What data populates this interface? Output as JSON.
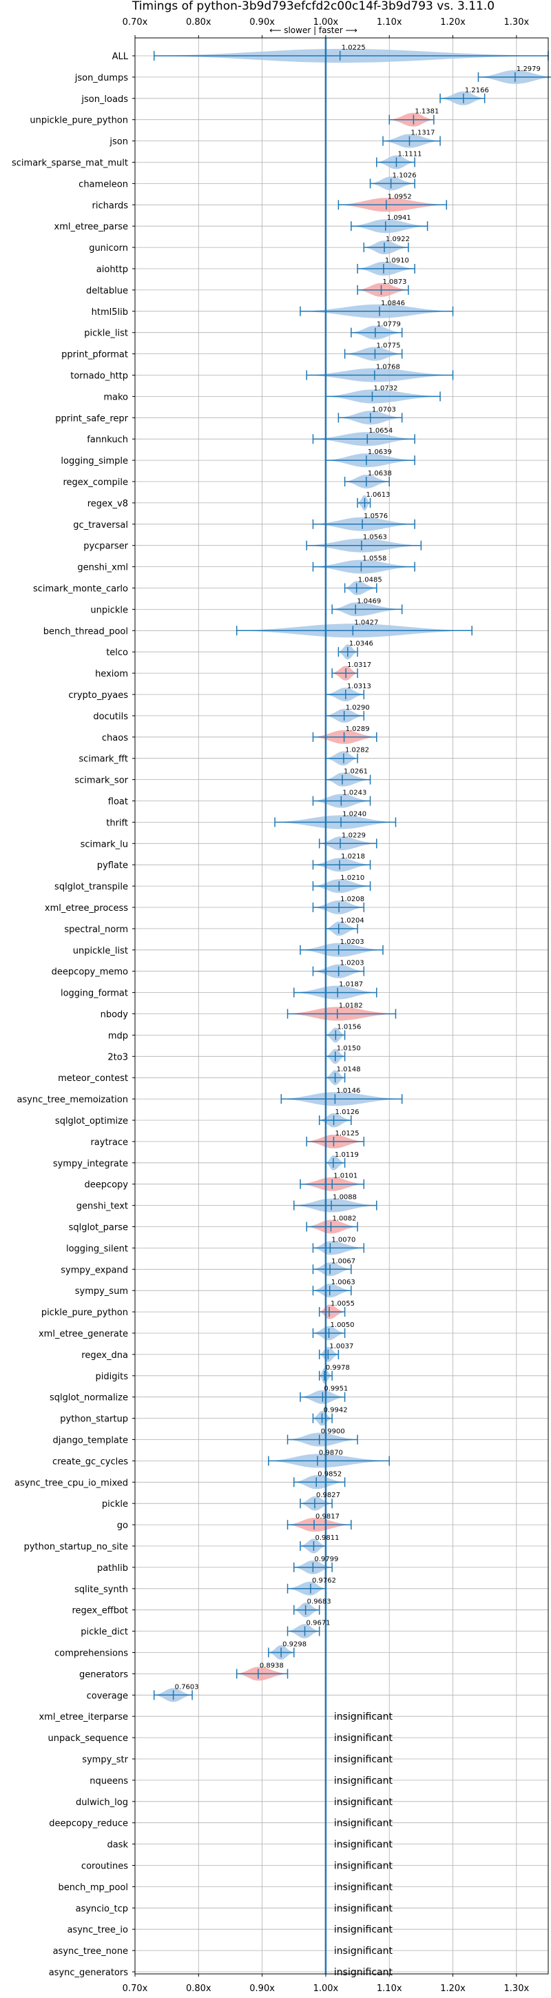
{
  "chart_data": {
    "type": "violin",
    "title": "Timings of python-3b9d793efcfd2c00c14f-3b9d793 vs. 3.11.0",
    "direction_label": "⟵ slower  |  faster ⟶",
    "xlim": [
      0.7,
      1.35
    ],
    "x_ticks": [
      0.7,
      0.8,
      0.9,
      1.0,
      1.1,
      1.2,
      1.3
    ],
    "x_tick_labels": [
      "0.70x",
      "0.80x",
      "0.90x",
      "1.00x",
      "1.10x",
      "1.20x",
      "1.30x"
    ],
    "reference_line": 1.0,
    "grid": true,
    "colors": {
      "violin_default": "#a8c8e8",
      "violin_highlight": "#f4a7a7",
      "range_line": "#1f77b4",
      "reference_line": "#1f77b4",
      "grid": "#b0b0b0"
    },
    "insignificant_text": "insignificant",
    "benchmarks": [
      {
        "name": "ALL",
        "value": 1.0225,
        "label": "1.0225",
        "min": 0.73,
        "max": 1.35,
        "highlight": false
      },
      {
        "name": "json_dumps",
        "value": 1.2979,
        "label": "1.2979",
        "min": 1.24,
        "max": 1.36,
        "highlight": false
      },
      {
        "name": "json_loads",
        "value": 1.2166,
        "label": "1.2166",
        "min": 1.18,
        "max": 1.25,
        "highlight": false
      },
      {
        "name": "unpickle_pure_python",
        "value": 1.1381,
        "label": "1.1381",
        "min": 1.1,
        "max": 1.17,
        "highlight": true
      },
      {
        "name": "json",
        "value": 1.1317,
        "label": "1.1317",
        "min": 1.09,
        "max": 1.18,
        "highlight": false
      },
      {
        "name": "scimark_sparse_mat_mult",
        "value": 1.1111,
        "label": "1.1111",
        "min": 1.08,
        "max": 1.14,
        "highlight": false
      },
      {
        "name": "chameleon",
        "value": 1.1026,
        "label": "1.1026",
        "min": 1.07,
        "max": 1.14,
        "highlight": false
      },
      {
        "name": "richards",
        "value": 1.0952,
        "label": "1.0952",
        "min": 1.02,
        "max": 1.19,
        "highlight": true
      },
      {
        "name": "xml_etree_parse",
        "value": 1.0941,
        "label": "1.0941",
        "min": 1.04,
        "max": 1.16,
        "highlight": false
      },
      {
        "name": "gunicorn",
        "value": 1.0922,
        "label": "1.0922",
        "min": 1.06,
        "max": 1.13,
        "highlight": false
      },
      {
        "name": "aiohttp",
        "value": 1.091,
        "label": "1.0910",
        "min": 1.05,
        "max": 1.14,
        "highlight": false
      },
      {
        "name": "deltablue",
        "value": 1.0873,
        "label": "1.0873",
        "min": 1.05,
        "max": 1.13,
        "highlight": true
      },
      {
        "name": "html5lib",
        "value": 1.0846,
        "label": "1.0846",
        "min": 0.96,
        "max": 1.2,
        "highlight": false
      },
      {
        "name": "pickle_list",
        "value": 1.0779,
        "label": "1.0779",
        "min": 1.04,
        "max": 1.12,
        "highlight": false
      },
      {
        "name": "pprint_pformat",
        "value": 1.0775,
        "label": "1.0775",
        "min": 1.03,
        "max": 1.12,
        "highlight": false
      },
      {
        "name": "tornado_http",
        "value": 1.0768,
        "label": "1.0768",
        "min": 0.97,
        "max": 1.2,
        "highlight": false
      },
      {
        "name": "mako",
        "value": 1.0732,
        "label": "1.0732",
        "min": 1.0,
        "max": 1.18,
        "highlight": false
      },
      {
        "name": "pprint_safe_repr",
        "value": 1.0703,
        "label": "1.0703",
        "min": 1.02,
        "max": 1.12,
        "highlight": false
      },
      {
        "name": "fannkuch",
        "value": 1.0654,
        "label": "1.0654",
        "min": 0.98,
        "max": 1.14,
        "highlight": false
      },
      {
        "name": "logging_simple",
        "value": 1.0639,
        "label": "1.0639",
        "min": 1.0,
        "max": 1.14,
        "highlight": false
      },
      {
        "name": "regex_compile",
        "value": 1.0638,
        "label": "1.0638",
        "min": 1.03,
        "max": 1.1,
        "highlight": false
      },
      {
        "name": "regex_v8",
        "value": 1.0613,
        "label": "1.0613",
        "min": 1.05,
        "max": 1.07,
        "highlight": false
      },
      {
        "name": "gc_traversal",
        "value": 1.0576,
        "label": "1.0576",
        "min": 0.98,
        "max": 1.14,
        "highlight": false
      },
      {
        "name": "pycparser",
        "value": 1.0563,
        "label": "1.0563",
        "min": 0.97,
        "max": 1.15,
        "highlight": false
      },
      {
        "name": "genshi_xml",
        "value": 1.0558,
        "label": "1.0558",
        "min": 0.98,
        "max": 1.14,
        "highlight": false
      },
      {
        "name": "scimark_monte_carlo",
        "value": 1.0485,
        "label": "1.0485",
        "min": 1.03,
        "max": 1.08,
        "highlight": false
      },
      {
        "name": "unpickle",
        "value": 1.0469,
        "label": "1.0469",
        "min": 1.01,
        "max": 1.12,
        "highlight": false
      },
      {
        "name": "bench_thread_pool",
        "value": 1.0427,
        "label": "1.0427",
        "min": 0.86,
        "max": 1.23,
        "highlight": false
      },
      {
        "name": "telco",
        "value": 1.0346,
        "label": "1.0346",
        "min": 1.02,
        "max": 1.05,
        "highlight": false
      },
      {
        "name": "hexiom",
        "value": 1.0317,
        "label": "1.0317",
        "min": 1.01,
        "max": 1.05,
        "highlight": true
      },
      {
        "name": "crypto_pyaes",
        "value": 1.0313,
        "label": "1.0313",
        "min": 1.0,
        "max": 1.06,
        "highlight": false
      },
      {
        "name": "docutils",
        "value": 1.029,
        "label": "1.0290",
        "min": 1.0,
        "max": 1.06,
        "highlight": false
      },
      {
        "name": "chaos",
        "value": 1.0289,
        "label": "1.0289",
        "min": 0.98,
        "max": 1.08,
        "highlight": true
      },
      {
        "name": "scimark_fft",
        "value": 1.0282,
        "label": "1.0282",
        "min": 1.0,
        "max": 1.05,
        "highlight": false
      },
      {
        "name": "scimark_sor",
        "value": 1.0261,
        "label": "1.0261",
        "min": 1.0,
        "max": 1.07,
        "highlight": false
      },
      {
        "name": "float",
        "value": 1.0243,
        "label": "1.0243",
        "min": 0.98,
        "max": 1.07,
        "highlight": false
      },
      {
        "name": "thrift",
        "value": 1.024,
        "label": "1.0240",
        "min": 0.92,
        "max": 1.11,
        "highlight": false
      },
      {
        "name": "scimark_lu",
        "value": 1.0229,
        "label": "1.0229",
        "min": 0.99,
        "max": 1.08,
        "highlight": false
      },
      {
        "name": "pyflate",
        "value": 1.0218,
        "label": "1.0218",
        "min": 0.98,
        "max": 1.07,
        "highlight": false
      },
      {
        "name": "sqlglot_transpile",
        "value": 1.021,
        "label": "1.0210",
        "min": 0.98,
        "max": 1.07,
        "highlight": false
      },
      {
        "name": "xml_etree_process",
        "value": 1.0208,
        "label": "1.0208",
        "min": 0.98,
        "max": 1.06,
        "highlight": false
      },
      {
        "name": "spectral_norm",
        "value": 1.0204,
        "label": "1.0204",
        "min": 1.0,
        "max": 1.05,
        "highlight": false
      },
      {
        "name": "unpickle_list",
        "value": 1.0203,
        "label": "1.0203",
        "min": 0.96,
        "max": 1.09,
        "highlight": false
      },
      {
        "name": "deepcopy_memo",
        "value": 1.0203,
        "label": "1.0203",
        "min": 0.98,
        "max": 1.06,
        "highlight": false
      },
      {
        "name": "logging_format",
        "value": 1.0187,
        "label": "1.0187",
        "min": 0.95,
        "max": 1.08,
        "highlight": false
      },
      {
        "name": "nbody",
        "value": 1.0182,
        "label": "1.0182",
        "min": 0.94,
        "max": 1.11,
        "highlight": true
      },
      {
        "name": "mdp",
        "value": 1.0156,
        "label": "1.0156",
        "min": 1.0,
        "max": 1.03,
        "highlight": false
      },
      {
        "name": "2to3",
        "value": 1.015,
        "label": "1.0150",
        "min": 1.0,
        "max": 1.03,
        "highlight": false
      },
      {
        "name": "meteor_contest",
        "value": 1.0148,
        "label": "1.0148",
        "min": 1.0,
        "max": 1.03,
        "highlight": false
      },
      {
        "name": "async_tree_memoization",
        "value": 1.0146,
        "label": "1.0146",
        "min": 0.93,
        "max": 1.12,
        "highlight": false
      },
      {
        "name": "sqlglot_optimize",
        "value": 1.0126,
        "label": "1.0126",
        "min": 0.99,
        "max": 1.04,
        "highlight": false
      },
      {
        "name": "raytrace",
        "value": 1.0125,
        "label": "1.0125",
        "min": 0.97,
        "max": 1.06,
        "highlight": true
      },
      {
        "name": "sympy_integrate",
        "value": 1.0119,
        "label": "1.0119",
        "min": 1.0,
        "max": 1.03,
        "highlight": false
      },
      {
        "name": "deepcopy",
        "value": 1.0101,
        "label": "1.0101",
        "min": 0.96,
        "max": 1.06,
        "highlight": true
      },
      {
        "name": "genshi_text",
        "value": 1.0088,
        "label": "1.0088",
        "min": 0.95,
        "max": 1.08,
        "highlight": false
      },
      {
        "name": "sqlglot_parse",
        "value": 1.0082,
        "label": "1.0082",
        "min": 0.97,
        "max": 1.05,
        "highlight": true
      },
      {
        "name": "logging_silent",
        "value": 1.007,
        "label": "1.0070",
        "min": 0.98,
        "max": 1.06,
        "highlight": false
      },
      {
        "name": "sympy_expand",
        "value": 1.0067,
        "label": "1.0067",
        "min": 0.98,
        "max": 1.04,
        "highlight": false
      },
      {
        "name": "sympy_sum",
        "value": 1.0063,
        "label": "1.0063",
        "min": 0.98,
        "max": 1.04,
        "highlight": false
      },
      {
        "name": "pickle_pure_python",
        "value": 1.0055,
        "label": "1.0055",
        "min": 0.99,
        "max": 1.03,
        "highlight": true
      },
      {
        "name": "xml_etree_generate",
        "value": 1.005,
        "label": "1.0050",
        "min": 0.98,
        "max": 1.03,
        "highlight": false
      },
      {
        "name": "regex_dna",
        "value": 1.0037,
        "label": "1.0037",
        "min": 0.99,
        "max": 1.02,
        "highlight": false
      },
      {
        "name": "pidigits",
        "value": 0.9978,
        "label": "0.9978",
        "min": 0.99,
        "max": 1.01,
        "highlight": false
      },
      {
        "name": "sqlglot_normalize",
        "value": 0.9951,
        "label": "0.9951",
        "min": 0.96,
        "max": 1.03,
        "highlight": false
      },
      {
        "name": "python_startup",
        "value": 0.9942,
        "label": "0.9942",
        "min": 0.98,
        "max": 1.01,
        "highlight": false
      },
      {
        "name": "django_template",
        "value": 0.99,
        "label": "0.9900",
        "min": 0.94,
        "max": 1.05,
        "highlight": false
      },
      {
        "name": "create_gc_cycles",
        "value": 0.987,
        "label": "0.9870",
        "min": 0.91,
        "max": 1.1,
        "highlight": false
      },
      {
        "name": "async_tree_cpu_io_mixed",
        "value": 0.9852,
        "label": "0.9852",
        "min": 0.95,
        "max": 1.03,
        "highlight": false
      },
      {
        "name": "pickle",
        "value": 0.9827,
        "label": "0.9827",
        "min": 0.96,
        "max": 1.01,
        "highlight": false
      },
      {
        "name": "go",
        "value": 0.9817,
        "label": "0.9817",
        "min": 0.94,
        "max": 1.04,
        "highlight": true
      },
      {
        "name": "python_startup_no_site",
        "value": 0.9811,
        "label": "0.9811",
        "min": 0.96,
        "max": 1.0,
        "highlight": false
      },
      {
        "name": "pathlib",
        "value": 0.9799,
        "label": "0.9799",
        "min": 0.95,
        "max": 1.01,
        "highlight": false
      },
      {
        "name": "sqlite_synth",
        "value": 0.9762,
        "label": "0.9762",
        "min": 0.94,
        "max": 1.0,
        "highlight": false
      },
      {
        "name": "regex_effbot",
        "value": 0.9683,
        "label": "0.9683",
        "min": 0.95,
        "max": 0.99,
        "highlight": false
      },
      {
        "name": "pickle_dict",
        "value": 0.9671,
        "label": "0.9671",
        "min": 0.94,
        "max": 0.99,
        "highlight": false
      },
      {
        "name": "comprehensions",
        "value": 0.9298,
        "label": "0.9298",
        "min": 0.91,
        "max": 0.95,
        "highlight": false
      },
      {
        "name": "generators",
        "value": 0.8938,
        "label": "0.8938",
        "min": 0.86,
        "max": 0.94,
        "highlight": true
      },
      {
        "name": "coverage",
        "value": 0.7603,
        "label": "0.7603",
        "min": 0.73,
        "max": 0.79,
        "highlight": false
      }
    ],
    "insignificant": [
      "xml_etree_iterparse",
      "unpack_sequence",
      "sympy_str",
      "nqueens",
      "dulwich_log",
      "deepcopy_reduce",
      "dask",
      "coroutines",
      "bench_mp_pool",
      "asyncio_tcp",
      "async_tree_io",
      "async_tree_none",
      "async_generators"
    ]
  }
}
